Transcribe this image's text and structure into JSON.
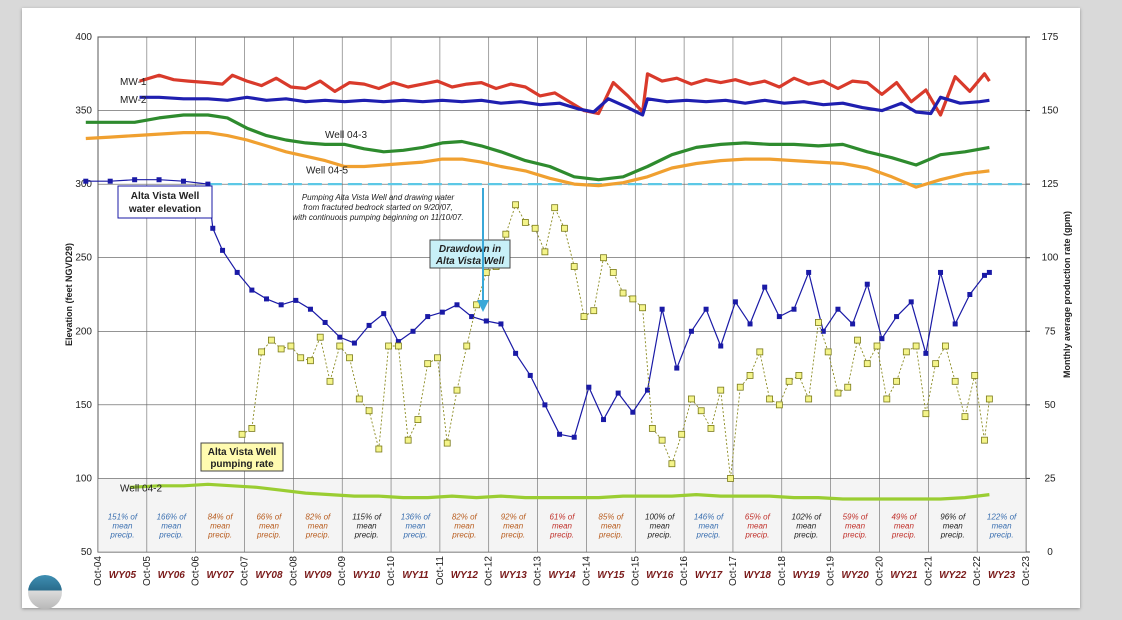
{
  "chart_data": {
    "type": "line",
    "y_left": {
      "label": "Elevation (feet NGVD29)",
      "range": [
        50,
        400
      ],
      "ticks": [
        "50",
        "100",
        "150",
        "200",
        "250",
        "300",
        "350",
        "400"
      ]
    },
    "y_right": {
      "label": "Monthly average production rate (gpm)",
      "range": [
        0,
        175
      ],
      "ticks": [
        "0",
        "25",
        "50",
        "75",
        "100",
        "125",
        "150",
        "175"
      ]
    },
    "x_ticks": [
      "Oct-04",
      "Oct-05",
      "Oct-06",
      "Oct-07",
      "Oct-08",
      "Oct-09",
      "Oct-10",
      "Oct-11",
      "Oct-12",
      "Oct-13",
      "Oct-14",
      "Oct-15",
      "Oct-16",
      "Oct-17",
      "Oct-18",
      "Oct-19",
      "Oct-20",
      "Oct-21",
      "Oct-22",
      "Oct-23"
    ],
    "water_years": [
      "WY05",
      "WY06",
      "WY07",
      "WY08",
      "WY09",
      "WY10",
      "WY11",
      "WY12",
      "WY13",
      "WY14",
      "WY15",
      "WY16",
      "WY17",
      "WY18",
      "WY19",
      "WY20",
      "WY21",
      "WY22",
      "WY23"
    ],
    "precip_pct": [
      "151%",
      "166%",
      "84%",
      "66%",
      "82%",
      "115%",
      "136%",
      "82%",
      "92%",
      "61%",
      "85%",
      "100%",
      "146%",
      "65%",
      "102%",
      "59%",
      "49%",
      "96%",
      "122%"
    ],
    "precip_colors": [
      "#3a6fb0",
      "#3a6fb0",
      "#b85c1e",
      "#b85c1e",
      "#b85c1e",
      "#222222",
      "#3a6fb0",
      "#b85c1e",
      "#b85c1e",
      "#c0302a",
      "#b85c1e",
      "#222222",
      "#3a6fb0",
      "#c0302a",
      "#222222",
      "#c0302a",
      "#c0302a",
      "#222222",
      "#3a6fb0"
    ],
    "precip_suffix": [
      "of",
      "mean",
      "precip."
    ],
    "grid": true,
    "series": [
      {
        "name": "MW-1",
        "color": "#d93a2b",
        "axis": "left",
        "x": [
          2005.6,
          2006.0,
          2006.3,
          2006.6,
          2007.0,
          2007.3,
          2007.5,
          2007.8,
          2008.1,
          2008.4,
          2008.7,
          2009.0,
          2009.3,
          2009.6,
          2009.9,
          2010.2,
          2010.5,
          2010.8,
          2011.1,
          2011.4,
          2011.7,
          2012.0,
          2012.3,
          2012.6,
          2012.9,
          2013.2,
          2013.5,
          2013.8,
          2014.1,
          2014.4,
          2014.7,
          2015.0,
          2015.3,
          2015.6,
          2015.9,
          2016.0,
          2016.3,
          2016.6,
          2016.9,
          2017.2,
          2017.5,
          2017.8,
          2018.1,
          2018.4,
          2018.7,
          2019.0,
          2019.3,
          2019.6,
          2019.9,
          2020.2,
          2020.5,
          2020.8,
          2021.1,
          2021.4,
          2021.7,
          2022.0,
          2022.3,
          2022.6,
          2022.9,
          2023.0
        ],
        "y": [
          370,
          374,
          371,
          370,
          369,
          368,
          374,
          370,
          367,
          372,
          366,
          365,
          370,
          363,
          369,
          368,
          365,
          369,
          366,
          368,
          370,
          366,
          368,
          369,
          365,
          368,
          366,
          360,
          362,
          356,
          350,
          348,
          369,
          360,
          349,
          375,
          370,
          372,
          368,
          371,
          369,
          371,
          368,
          370,
          366,
          372,
          368,
          370,
          365,
          370,
          369,
          361,
          369,
          356,
          364,
          347,
          373,
          363,
          375,
          370
        ]
      },
      {
        "name": "MW-2",
        "color": "#1f1fb0",
        "axis": "left",
        "x": [
          2005.6,
          2006.0,
          2006.5,
          2007.0,
          2007.4,
          2007.8,
          2008.2,
          2008.6,
          2009.0,
          2009.4,
          2009.8,
          2010.2,
          2010.6,
          2011.0,
          2011.4,
          2011.8,
          2012.2,
          2012.6,
          2013.0,
          2013.4,
          2013.8,
          2014.2,
          2014.6,
          2014.9,
          2015.2,
          2015.6,
          2015.9,
          2016.0,
          2016.4,
          2016.8,
          2017.2,
          2017.6,
          2018.0,
          2018.4,
          2018.8,
          2019.2,
          2019.6,
          2020.0,
          2020.4,
          2020.8,
          2021.2,
          2021.5,
          2021.8,
          2022.0,
          2022.4,
          2022.8,
          2023.0
        ],
        "y": [
          359,
          359,
          358,
          358,
          357,
          359,
          357,
          358,
          356,
          357,
          356,
          357,
          356,
          357,
          356,
          357,
          356,
          357,
          355,
          356,
          354,
          355,
          351,
          349,
          358,
          352,
          347,
          358,
          356,
          357,
          356,
          357,
          355,
          357,
          355,
          356,
          354,
          355,
          352,
          350,
          355,
          349,
          348,
          359,
          355,
          356,
          357
        ]
      },
      {
        "name": "Well 04-3",
        "color": "#2e8b2e",
        "axis": "left",
        "x": [
          2004.5,
          2005.0,
          2005.5,
          2006.0,
          2006.5,
          2007.0,
          2007.4,
          2007.8,
          2008.2,
          2008.6,
          2009.0,
          2009.4,
          2009.8,
          2010.2,
          2010.6,
          2011.0,
          2011.4,
          2011.8,
          2012.2,
          2012.6,
          2013.0,
          2013.5,
          2014.0,
          2014.5,
          2015.0,
          2015.5,
          2016.0,
          2016.5,
          2017.0,
          2017.5,
          2018.0,
          2018.5,
          2019.0,
          2019.5,
          2020.0,
          2020.5,
          2021.0,
          2021.5,
          2022.0,
          2022.5,
          2023.0
        ],
        "y": [
          342,
          342,
          342,
          345,
          347,
          347,
          345,
          338,
          333,
          330,
          328,
          327,
          327,
          324,
          322,
          323,
          325,
          328,
          329,
          326,
          322,
          316,
          312,
          305,
          303,
          305,
          312,
          320,
          325,
          327,
          328,
          327,
          327,
          326,
          327,
          322,
          318,
          313,
          320,
          322,
          325
        ]
      },
      {
        "name": "Well 04-5",
        "color": "#f0a030",
        "axis": "left",
        "x": [
          2004.5,
          2005.0,
          2005.5,
          2006.0,
          2006.5,
          2007.0,
          2007.4,
          2007.8,
          2008.2,
          2008.6,
          2009.0,
          2009.4,
          2009.8,
          2010.2,
          2010.6,
          2011.0,
          2011.4,
          2011.8,
          2012.2,
          2012.6,
          2013.0,
          2013.5,
          2014.0,
          2014.5,
          2015.0,
          2015.5,
          2016.0,
          2016.5,
          2017.0,
          2017.5,
          2018.0,
          2018.5,
          2019.0,
          2019.5,
          2020.0,
          2020.5,
          2021.0,
          2021.5,
          2022.0,
          2022.5,
          2023.0
        ],
        "y": [
          331,
          332,
          333,
          334,
          335,
          335,
          333,
          330,
          326,
          322,
          319,
          316,
          312,
          312,
          313,
          314,
          315,
          317,
          317,
          315,
          312,
          309,
          304,
          300,
          299,
          301,
          305,
          311,
          314,
          316,
          317,
          317,
          316,
          315,
          314,
          311,
          305,
          298,
          303,
          307,
          309
        ]
      },
      {
        "name": "Well 04-2",
        "color": "#9acd32",
        "axis": "left",
        "x": [
          2005.4,
          2006.0,
          2006.5,
          2007.0,
          2007.5,
          2008.0,
          2008.5,
          2009.0,
          2009.5,
          2010.0,
          2010.5,
          2011.0,
          2011.5,
          2012.0,
          2012.5,
          2013.0,
          2013.5,
          2014.0,
          2014.5,
          2015.0,
          2015.5,
          2016.0,
          2016.5,
          2017.0,
          2017.5,
          2018.0,
          2018.5,
          2019.0,
          2019.5,
          2020.0,
          2020.5,
          2021.0,
          2021.5,
          2022.0,
          2022.5,
          2023.0
        ],
        "y": [
          94,
          95,
          95,
          96,
          95,
          94,
          92,
          90,
          89,
          88,
          88,
          87,
          87,
          88,
          87,
          88,
          87,
          87,
          87,
          87,
          88,
          88,
          88,
          89,
          88,
          88,
          88,
          87,
          87,
          86,
          86,
          86,
          86,
          86,
          87,
          89
        ]
      },
      {
        "name": "Alta Vista Well water elevation",
        "color": "#1a1aa6",
        "axis": "left",
        "x": [
          2004.5,
          2005.0,
          2005.5,
          2006.0,
          2006.5,
          2007.0,
          2007.1,
          2007.3,
          2007.6,
          2007.9,
          2008.2,
          2008.5,
          2008.8,
          2009.1,
          2009.4,
          2009.7,
          2010.0,
          2010.3,
          2010.6,
          2010.9,
          2011.2,
          2011.5,
          2011.8,
          2012.1,
          2012.4,
          2012.7,
          2013.0,
          2013.3,
          2013.6,
          2013.9,
          2014.2,
          2014.5,
          2014.8,
          2015.1,
          2015.4,
          2015.7,
          2016.0,
          2016.3,
          2016.6,
          2016.9,
          2017.2,
          2017.5,
          2017.8,
          2018.1,
          2018.4,
          2018.7,
          2019.0,
          2019.3,
          2019.6,
          2019.9,
          2020.2,
          2020.5,
          2020.8,
          2021.1,
          2021.4,
          2021.7,
          2022.0,
          2022.3,
          2022.6,
          2022.9,
          2023.0
        ],
        "y": [
          302,
          302,
          303,
          303,
          302,
          300,
          270,
          255,
          240,
          228,
          222,
          218,
          221,
          215,
          206,
          196,
          192,
          204,
          212,
          193,
          200,
          210,
          213,
          218,
          210,
          207,
          205,
          185,
          170,
          150,
          130,
          128,
          162,
          140,
          158,
          145,
          160,
          215,
          175,
          200,
          215,
          190,
          220,
          205,
          230,
          210,
          215,
          240,
          200,
          215,
          205,
          232,
          195,
          210,
          220,
          185,
          240,
          205,
          225,
          238,
          240
        ]
      },
      {
        "name": "Alta Vista Well pumping rate",
        "color": "#c8c83a",
        "axis": "right",
        "x": [
          2007.7,
          2007.9,
          2008.1,
          2008.3,
          2008.5,
          2008.7,
          2008.9,
          2009.1,
          2009.3,
          2009.5,
          2009.7,
          2009.9,
          2010.1,
          2010.3,
          2010.5,
          2010.7,
          2010.9,
          2011.1,
          2011.3,
          2011.5,
          2011.7,
          2011.9,
          2012.1,
          2012.3,
          2012.5,
          2012.7,
          2012.9,
          2013.1,
          2013.3,
          2013.5,
          2013.7,
          2013.9,
          2014.1,
          2014.3,
          2014.5,
          2014.7,
          2014.9,
          2015.1,
          2015.3,
          2015.5,
          2015.7,
          2015.9,
          2016.1,
          2016.3,
          2016.5,
          2016.7,
          2016.9,
          2017.1,
          2017.3,
          2017.5,
          2017.7,
          2017.9,
          2018.1,
          2018.3,
          2018.5,
          2018.7,
          2018.9,
          2019.1,
          2019.3,
          2019.5,
          2019.7,
          2019.9,
          2020.1,
          2020.3,
          2020.5,
          2020.7,
          2020.9,
          2021.1,
          2021.3,
          2021.5,
          2021.7,
          2021.9,
          2022.1,
          2022.3,
          2022.5,
          2022.7,
          2022.9,
          2023.0
        ],
        "y": [
          40,
          42,
          68,
          72,
          69,
          70,
          66,
          65,
          73,
          58,
          70,
          66,
          52,
          48,
          35,
          70,
          70,
          38,
          45,
          64,
          66,
          37,
          55,
          70,
          84,
          95,
          97,
          108,
          118,
          112,
          110,
          102,
          117,
          110,
          97,
          80,
          82,
          100,
          95,
          88,
          86,
          83,
          42,
          38,
          30,
          40,
          52,
          48,
          42,
          55,
          25,
          56,
          60,
          68,
          52,
          50,
          58,
          60,
          52,
          78,
          68,
          54,
          56,
          72,
          64,
          70,
          52,
          58,
          68,
          70,
          47,
          64,
          70,
          58,
          46,
          60,
          38,
          52
        ]
      }
    ],
    "annotations": {
      "mw1": "MW-1",
      "mw2": "MW-2",
      "well043": "Well 04-3",
      "well045": "Well 04-5",
      "well042": "Well 04-2",
      "avElev_line1": "Alta Vista Well",
      "avElev_line2": "water elevation",
      "avPump_line1": "Alta Vista Well",
      "avPump_line2": "pumping rate",
      "drawdown_line1": "Drawdown in",
      "drawdown_line2": "Alta Vista Well",
      "note_line1": "Pumping Alta Vista Well and drawing water",
      "note_line2": "from fractured bedrock started on 9/20/07,",
      "note_line3": "with continuous pumping beginning on 11/10/07."
    },
    "colors": {
      "ref_line_300": "#5bc8e6",
      "callout_fill": "#fffbb0",
      "drawdown_fill": "#c8f0f8",
      "wy_label": "#7a1a1a"
    }
  }
}
